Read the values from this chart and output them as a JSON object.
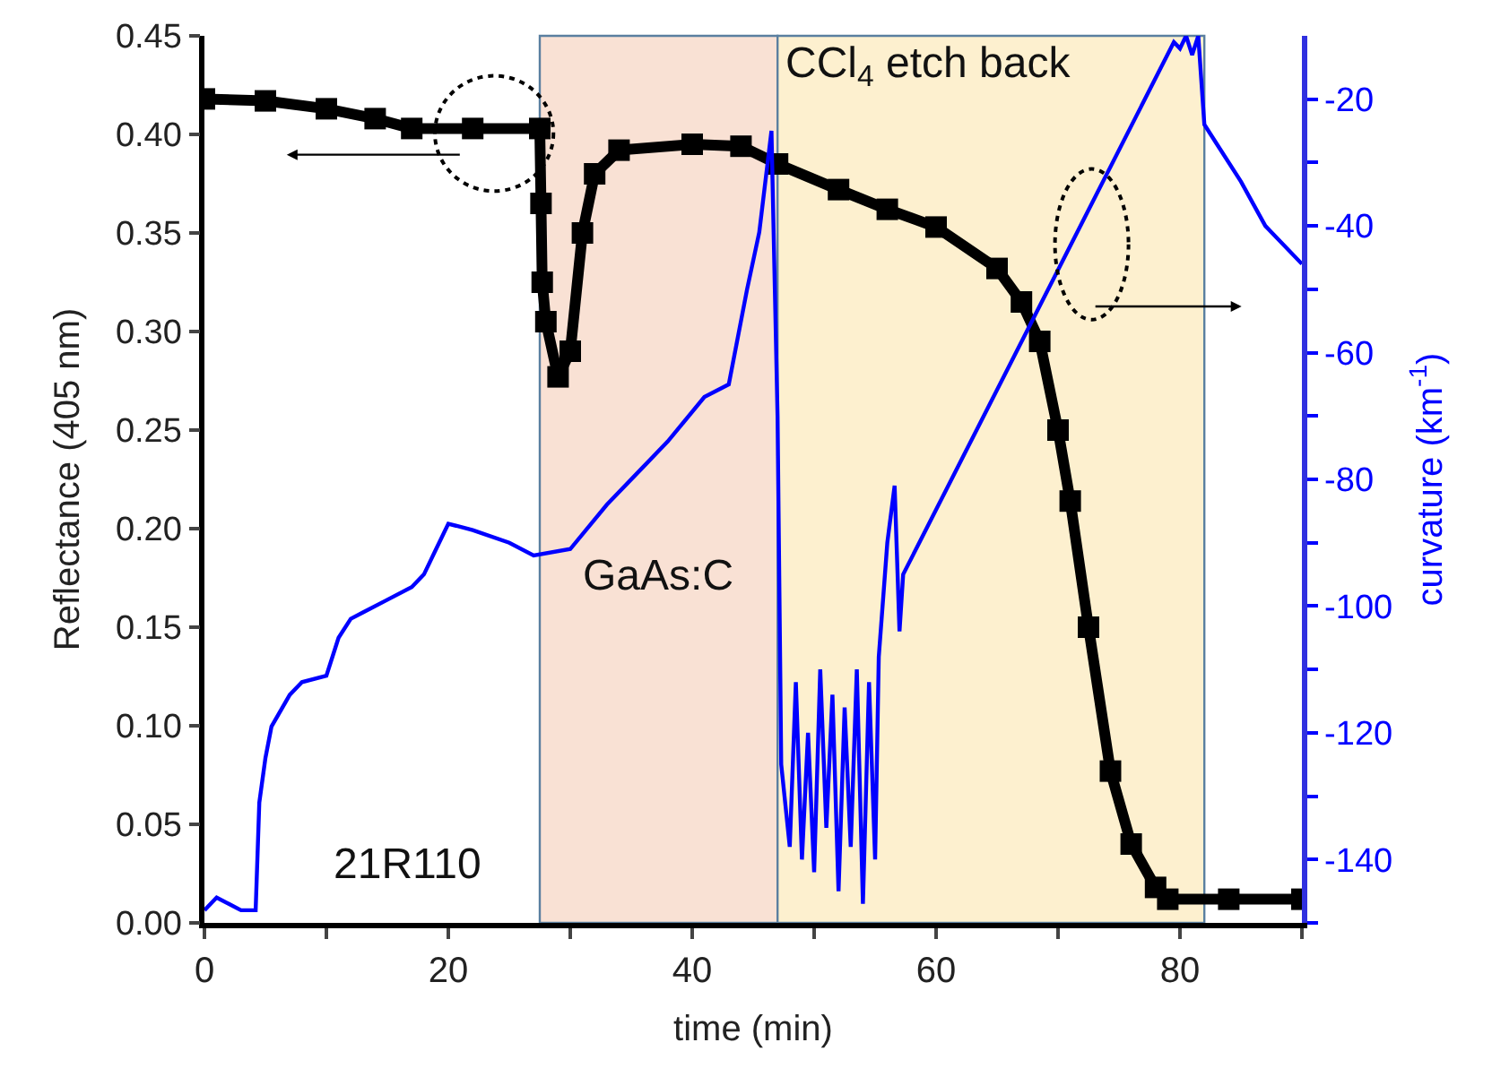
{
  "chart_data": {
    "type": "line",
    "xlabel": "time (min)",
    "ylabel": "Reflectance (405 nm)",
    "y2label": "curvature (km$^{-1}$)",
    "xlim": [
      0,
      90
    ],
    "xticks": [
      0,
      {
        "value": 10,
        "label": null
      },
      20,
      {
        "value": 30,
        "label": null
      },
      40,
      {
        "value": 50,
        "label": null
      },
      60,
      {
        "value": 70,
        "label": null
      },
      80,
      {
        "value": 90,
        "label": null
      }
    ],
    "ylim": [
      0,
      0.45
    ],
    "yticks": [
      {
        "value": 0,
        "label": "0.00"
      },
      {
        "value": 0.05,
        "label": "0.05"
      },
      {
        "value": 0.1,
        "label": "0.10"
      },
      {
        "value": 0.15,
        "label": "0.15"
      },
      {
        "value": 0.2,
        "label": "0.20"
      },
      {
        "value": 0.25,
        "label": "0.25"
      },
      {
        "value": 0.3,
        "label": "0.30"
      },
      {
        "value": 0.35,
        "label": "0.35"
      },
      {
        "value": 0.4,
        "label": "0.40"
      },
      {
        "value": 0.45,
        "label": "0.45"
      }
    ],
    "y2lim": [
      -150,
      -10
    ],
    "y2ticks": [
      {
        "value": -20,
        "label": "-20"
      },
      {
        "value": -30,
        "label": null
      },
      {
        "value": -40,
        "label": "-40"
      },
      {
        "value": -50,
        "label": null
      },
      {
        "value": -60,
        "label": "-60"
      },
      {
        "value": -70,
        "label": null
      },
      {
        "value": -80,
        "label": "-80"
      },
      {
        "value": -90,
        "label": null
      },
      {
        "value": -100,
        "label": "-100"
      },
      {
        "value": -110,
        "label": null
      },
      {
        "value": -120,
        "label": "-120"
      },
      {
        "value": -130,
        "label": null
      },
      {
        "value": -140,
        "label": "-140"
      },
      {
        "value": -150,
        "label": null
      }
    ],
    "grid": false,
    "series": [
      {
        "color": "#000000",
        "marker": "square",
        "x": [
          0,
          5,
          10,
          14,
          17,
          22,
          27.5,
          27.6,
          27.7,
          28,
          29,
          30,
          31,
          32,
          34,
          40,
          44,
          47,
          52,
          56,
          60,
          65,
          67,
          68.5,
          70,
          71,
          72.5,
          74.3,
          76,
          78,
          79,
          84,
          90
        ],
        "values": [
          0.418,
          0.417,
          0.413,
          0.408,
          0.403,
          0.403,
          0.403,
          0.365,
          0.325,
          0.305,
          0.277,
          0.29,
          0.35,
          0.38,
          0.392,
          0.395,
          0.394,
          0.385,
          0.372,
          0.362,
          0.353,
          0.332,
          0.315,
          0.295,
          0.25,
          0.214,
          0.15,
          0.077,
          0.04,
          0.018,
          0.012,
          0.012,
          0.012
        ]
      },
      {
        "color": "#0000ff",
        "marker": "none",
        "axis": "y2",
        "x": [
          0,
          1,
          2,
          3,
          4.2,
          4.5,
          5,
          5.5,
          7,
          8,
          10,
          11,
          12,
          13,
          15,
          17,
          18,
          19,
          20,
          22,
          25,
          27,
          30,
          33,
          36,
          38,
          41,
          43,
          44.5,
          45.5,
          46.5,
          47,
          47.3,
          48,
          48.5,
          49,
          49.5,
          50,
          50.5,
          51,
          51.5,
          52,
          52.5,
          53,
          53.5,
          54,
          54.5,
          55,
          55.3,
          56,
          56.6,
          57,
          57.3,
          79.5,
          80,
          80.5,
          81,
          81.5,
          82,
          83,
          85,
          87,
          90
        ],
        "values": [
          -148,
          -146,
          -147,
          -148,
          -148,
          -131,
          -124,
          -119,
          -114,
          -112,
          -111,
          -105,
          -102,
          -101,
          -99,
          -97,
          -95,
          -91,
          -87,
          -88,
          -90,
          -92,
          -91,
          -84,
          -78,
          -74,
          -67,
          -65,
          -50,
          -41,
          -25,
          -70,
          -125,
          -138,
          -112,
          -140,
          -120,
          -142,
          -110,
          -135,
          -114,
          -145,
          -116,
          -138,
          -110,
          -147,
          -112,
          -140,
          -108,
          -90,
          -81,
          -104,
          -95,
          -11,
          -12,
          -10,
          -13,
          -10,
          -24,
          -27,
          -33,
          -40,
          -46
        ]
      }
    ],
    "bands": [
      {
        "axis": "x",
        "from": 27.5,
        "to": 47,
        "label": "GaAs:C",
        "color": "#f9e1d4"
      },
      {
        "axis": "x",
        "from": 47,
        "to": 82,
        "label": "CCl$_{4}$ etch back",
        "color": "#fdf0cf"
      }
    ],
    "annotations": [
      "21R110"
    ]
  }
}
